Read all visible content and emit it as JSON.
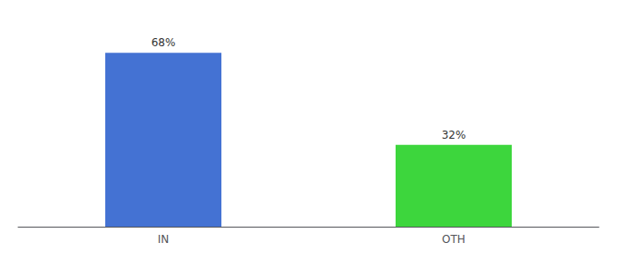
{
  "chart_data": {
    "type": "bar",
    "categories": [
      "IN",
      "OTH"
    ],
    "values": [
      68,
      32
    ],
    "value_labels": [
      "68%",
      "32%"
    ],
    "colors": [
      "#4472D3",
      "#3DD63D"
    ],
    "ylim": [
      0,
      78
    ],
    "grid": false,
    "data_labels": true,
    "tick_labels": "x"
  }
}
